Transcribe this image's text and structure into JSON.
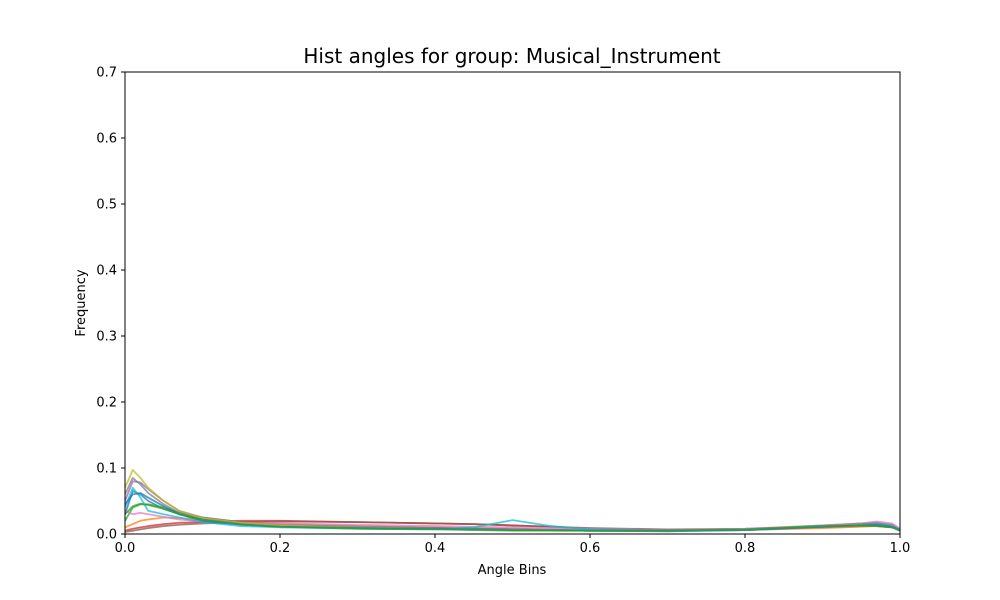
{
  "chart_data": {
    "type": "line",
    "title": "Hist angles for group: Musical_Instrument",
    "xlabel": "Angle Bins",
    "ylabel": "Frequency",
    "xlim": [
      0,
      1
    ],
    "ylim": [
      0,
      0.7
    ],
    "xticks": [
      "0.0",
      "0.2",
      "0.4",
      "0.6",
      "0.8",
      "1.0"
    ],
    "yticks": [
      "0.0",
      "0.1",
      "0.2",
      "0.3",
      "0.4",
      "0.5",
      "0.6",
      "0.7"
    ],
    "grid": false,
    "legend": "none",
    "x": [
      0.0,
      0.01,
      0.02,
      0.03,
      0.05,
      0.07,
      0.1,
      0.15,
      0.2,
      0.3,
      0.4,
      0.45,
      0.5,
      0.55,
      0.6,
      0.7,
      0.8,
      0.9,
      0.95,
      0.97,
      0.99,
      1.0
    ],
    "series": [
      {
        "color": "#1f77b4",
        "values": [
          0.03,
          0.065,
          0.06,
          0.05,
          0.038,
          0.03,
          0.022,
          0.015,
          0.012,
          0.01,
          0.009,
          0.008,
          0.007,
          0.006,
          0.005,
          0.004,
          0.006,
          0.01,
          0.012,
          0.012,
          0.01,
          0.005
        ]
      },
      {
        "color": "#ff7f0e",
        "values": [
          0.01,
          0.015,
          0.02,
          0.022,
          0.025,
          0.024,
          0.022,
          0.018,
          0.015,
          0.012,
          0.01,
          0.009,
          0.008,
          0.007,
          0.006,
          0.005,
          0.006,
          0.009,
          0.011,
          0.012,
          0.01,
          0.006
        ]
      },
      {
        "color": "#2ca02c",
        "values": [
          0.02,
          0.04,
          0.045,
          0.045,
          0.04,
          0.032,
          0.025,
          0.018,
          0.014,
          0.011,
          0.009,
          0.008,
          0.007,
          0.006,
          0.006,
          0.005,
          0.007,
          0.012,
          0.014,
          0.013,
          0.01,
          0.006
        ]
      },
      {
        "color": "#d62728",
        "values": [
          0.005,
          0.008,
          0.01,
          0.012,
          0.015,
          0.017,
          0.018,
          0.02,
          0.02,
          0.018,
          0.016,
          0.015,
          0.013,
          0.011,
          0.008,
          0.006,
          0.007,
          0.011,
          0.014,
          0.015,
          0.012,
          0.006
        ]
      },
      {
        "color": "#9467bd",
        "values": [
          0.05,
          0.08,
          0.078,
          0.068,
          0.05,
          0.035,
          0.025,
          0.018,
          0.014,
          0.011,
          0.009,
          0.008,
          0.007,
          0.006,
          0.005,
          0.005,
          0.007,
          0.013,
          0.016,
          0.017,
          0.014,
          0.007
        ]
      },
      {
        "color": "#8c564b",
        "values": [
          0.003,
          0.005,
          0.007,
          0.009,
          0.012,
          0.014,
          0.016,
          0.018,
          0.019,
          0.018,
          0.016,
          0.015,
          0.013,
          0.011,
          0.009,
          0.007,
          0.008,
          0.012,
          0.014,
          0.014,
          0.012,
          0.006
        ]
      },
      {
        "color": "#e377c2",
        "values": [
          0.035,
          0.03,
          0.032,
          0.03,
          0.026,
          0.022,
          0.019,
          0.017,
          0.016,
          0.014,
          0.012,
          0.011,
          0.01,
          0.009,
          0.008,
          0.006,
          0.008,
          0.013,
          0.016,
          0.019,
          0.016,
          0.008
        ]
      },
      {
        "color": "#7f7f7f",
        "values": [
          0.06,
          0.085,
          0.075,
          0.062,
          0.045,
          0.032,
          0.022,
          0.016,
          0.012,
          0.01,
          0.008,
          0.007,
          0.006,
          0.006,
          0.005,
          0.005,
          0.007,
          0.012,
          0.015,
          0.016,
          0.013,
          0.006
        ]
      },
      {
        "color": "#bcbd22",
        "values": [
          0.07,
          0.097,
          0.085,
          0.07,
          0.05,
          0.035,
          0.024,
          0.017,
          0.013,
          0.01,
          0.008,
          0.007,
          0.006,
          0.006,
          0.005,
          0.005,
          0.007,
          0.012,
          0.014,
          0.014,
          0.012,
          0.006
        ]
      },
      {
        "color": "#17becf",
        "values": [
          0.04,
          0.07,
          0.055,
          0.035,
          0.03,
          0.025,
          0.018,
          0.012,
          0.01,
          0.008,
          0.007,
          0.01,
          0.021,
          0.012,
          0.007,
          0.005,
          0.006,
          0.011,
          0.014,
          0.015,
          0.012,
          0.006
        ]
      },
      {
        "color": "#1f77b4",
        "values": [
          0.045,
          0.06,
          0.062,
          0.055,
          0.042,
          0.03,
          0.02,
          0.014,
          0.011,
          0.009,
          0.008,
          0.007,
          0.006,
          0.006,
          0.005,
          0.005,
          0.006,
          0.011,
          0.013,
          0.014,
          0.011,
          0.006
        ]
      },
      {
        "color": "#2ca02c",
        "values": [
          0.03,
          0.042,
          0.046,
          0.044,
          0.038,
          0.03,
          0.022,
          0.015,
          0.011,
          0.008,
          0.007,
          0.006,
          0.005,
          0.005,
          0.005,
          0.005,
          0.007,
          0.012,
          0.013,
          0.012,
          0.01,
          0.005
        ]
      }
    ]
  }
}
